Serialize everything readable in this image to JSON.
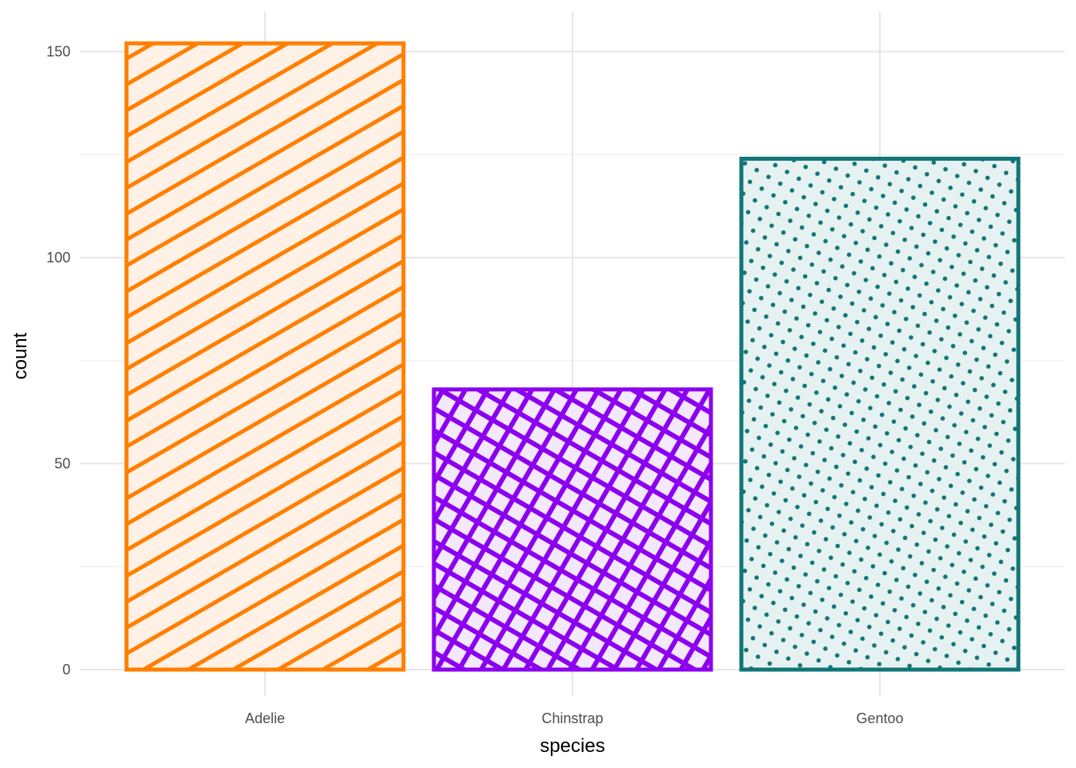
{
  "chart_data": {
    "type": "bar",
    "categories": [
      "Adelie",
      "Chinstrap",
      "Gentoo"
    ],
    "values": [
      152,
      68,
      124
    ],
    "xlabel": "species",
    "ylabel": "count",
    "ylim": [
      0,
      160
    ],
    "yticks": [
      0,
      50,
      100,
      150
    ],
    "grid": true,
    "legend": "none",
    "bar_styles": [
      {
        "pattern": "stripe",
        "color": "#ff7f00",
        "fill": "#fff1e6"
      },
      {
        "pattern": "crosshatch",
        "color": "#8c00f0",
        "fill": "#f4e8fd"
      },
      {
        "pattern": "dots",
        "color": "#117577",
        "fill": "#e6f2f2"
      }
    ]
  }
}
